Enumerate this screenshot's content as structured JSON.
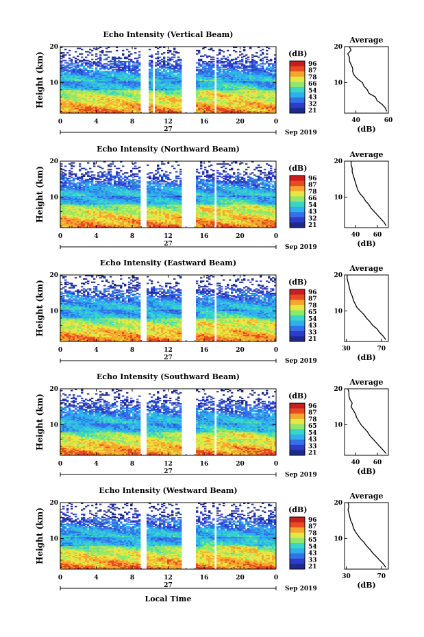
{
  "chart_data": [
    {
      "type": "heatmap",
      "title": "Echo Intensity (Vertical Beam)",
      "ylabel": "Height (km)",
      "x_ticks": [
        "0",
        "4",
        "8",
        "12",
        "16",
        "20",
        "0"
      ],
      "y_ticks": [
        "10",
        "20"
      ],
      "xlim": [
        0,
        24
      ],
      "ylim": [
        1.5,
        20
      ],
      "date_day": "27",
      "date_month_year": "Sep 2019",
      "colorbar": {
        "unit": "(dB)",
        "labels": [
          "96",
          "87",
          "78",
          "66",
          "54",
          "43",
          "32",
          "21"
        ],
        "range": [
          21,
          96
        ]
      },
      "data_gaps_hours": [
        [
          9.0,
          9.9
        ],
        [
          10.3,
          10.5
        ],
        [
          13.5,
          15.0
        ],
        [
          17.1,
          17.4
        ]
      ],
      "average_profile": {
        "title": "Average",
        "xlabel": "(dB)",
        "x_ticks": [
          "40",
          "60"
        ],
        "y_ticks": [
          "10",
          "20"
        ],
        "xlim": [
          33,
          60
        ],
        "height_km": [
          2,
          3,
          4,
          5,
          6,
          7,
          8,
          9,
          10,
          11,
          12,
          13,
          14,
          15,
          16,
          17,
          18,
          19,
          20
        ],
        "db": [
          59,
          58,
          56,
          53,
          52,
          48,
          47,
          45,
          44,
          41,
          39,
          38,
          38,
          37,
          36,
          36,
          35,
          37,
          36
        ]
      }
    },
    {
      "type": "heatmap",
      "title": "Echo Intensity (Northward Beam)",
      "ylabel": "Height (km)",
      "x_ticks": [
        "0",
        "4",
        "8",
        "12",
        "16",
        "20",
        "0"
      ],
      "y_ticks": [
        "10",
        "20"
      ],
      "xlim": [
        0,
        24
      ],
      "ylim": [
        1.5,
        20
      ],
      "date_day": "27",
      "date_month_year": "Sep 2019",
      "colorbar": {
        "unit": "(dB)",
        "labels": [
          "96",
          "87",
          "78",
          "66",
          "54",
          "43",
          "32",
          "21"
        ],
        "range": [
          21,
          96
        ]
      },
      "data_gaps_hours": [
        [
          9.0,
          9.6
        ],
        [
          10.2,
          10.4
        ],
        [
          13.5,
          15.0
        ],
        [
          17.1,
          17.4
        ]
      ],
      "average_profile": {
        "title": "Average",
        "xlabel": "(dB)",
        "x_ticks": [
          "40",
          "60"
        ],
        "y_ticks": [
          "10",
          "20"
        ],
        "xlim": [
          30,
          70
        ],
        "height_km": [
          2,
          3,
          4,
          5,
          6,
          7,
          8,
          9,
          10,
          11,
          12,
          13,
          14,
          15,
          16,
          17,
          18,
          19,
          20
        ],
        "db": [
          68,
          66,
          63,
          60,
          57,
          54,
          52,
          49,
          47,
          44,
          42,
          41,
          40,
          39,
          38,
          37,
          37,
          36,
          36
        ]
      }
    },
    {
      "type": "heatmap",
      "title": "Echo Intensity (Eastward Beam)",
      "ylabel": "Height (km)",
      "x_ticks": [
        "0",
        "4",
        "8",
        "12",
        "16",
        "20",
        "0"
      ],
      "y_ticks": [
        "10",
        "20"
      ],
      "xlim": [
        0,
        24
      ],
      "ylim": [
        1.5,
        20
      ],
      "date_day": "27",
      "date_month_year": "Sep 2019",
      "colorbar": {
        "unit": "(dB)",
        "labels": [
          "96",
          "87",
          "78",
          "65",
          "54",
          "43",
          "33",
          "21"
        ],
        "range": [
          21,
          96
        ]
      },
      "data_gaps_hours": [
        [
          9.0,
          9.6
        ],
        [
          10.2,
          10.4
        ],
        [
          13.5,
          15.0
        ],
        [
          17.1,
          17.4
        ]
      ],
      "average_profile": {
        "title": "Average",
        "xlabel": "(dB)",
        "x_ticks": [
          "30",
          "70"
        ],
        "y_ticks": [
          "10",
          "20"
        ],
        "xlim": [
          28,
          78
        ],
        "height_km": [
          2,
          3,
          4,
          5,
          6,
          7,
          8,
          9,
          10,
          11,
          12,
          13,
          14,
          15,
          16,
          17,
          18,
          19,
          20
        ],
        "db": [
          75,
          72,
          68,
          65,
          60,
          57,
          53,
          50,
          46,
          42,
          40,
          38,
          37,
          35,
          34,
          33,
          32,
          31,
          31
        ]
      }
    },
    {
      "type": "heatmap",
      "title": "Echo Intensity (Southward Beam)",
      "ylabel": "Height (km)",
      "x_ticks": [
        "0",
        "4",
        "8",
        "12",
        "16",
        "20",
        "0"
      ],
      "y_ticks": [
        "10",
        "20"
      ],
      "xlim": [
        0,
        24
      ],
      "ylim": [
        1.5,
        20
      ],
      "date_day": "27",
      "date_month_year": "Sep 2019",
      "colorbar": {
        "unit": "(dB)",
        "labels": [
          "96",
          "87",
          "78",
          "65",
          "54",
          "43",
          "33",
          "21"
        ],
        "range": [
          21,
          96
        ]
      },
      "data_gaps_hours": [
        [
          9.0,
          9.6
        ],
        [
          10.2,
          10.4
        ],
        [
          13.5,
          15.0
        ],
        [
          17.1,
          17.4
        ]
      ],
      "average_profile": {
        "title": "Average",
        "xlabel": "(dB)",
        "x_ticks": [
          "40",
          "60"
        ],
        "y_ticks": [
          "10",
          "20"
        ],
        "xlim": [
          30,
          70
        ],
        "height_km": [
          2,
          3,
          4,
          5,
          6,
          7,
          8,
          9,
          10,
          11,
          12,
          13,
          14,
          15,
          16,
          17,
          18,
          19,
          20
        ],
        "db": [
          68,
          65,
          62,
          59,
          56,
          53,
          51,
          48,
          45,
          43,
          41,
          40,
          38,
          36,
          37,
          35,
          34,
          34,
          33
        ]
      }
    },
    {
      "type": "heatmap",
      "title": "Echo Intensity (Westward Beam)",
      "ylabel": "Height (km)",
      "x_ticks": [
        "0",
        "4",
        "8",
        "12",
        "16",
        "20",
        "0"
      ],
      "y_ticks": [
        "10",
        "20"
      ],
      "xlim": [
        0,
        24
      ],
      "ylim": [
        1.5,
        20
      ],
      "date_day": "27",
      "date_month_year": "Sep 2019",
      "xlabel": "Local Time",
      "colorbar": {
        "unit": "(dB)",
        "labels": [
          "96",
          "87",
          "78",
          "65",
          "54",
          "43",
          "33",
          "21"
        ],
        "range": [
          21,
          96
        ]
      },
      "data_gaps_hours": [
        [
          9.0,
          9.6
        ],
        [
          10.2,
          10.4
        ],
        [
          13.5,
          15.0
        ],
        [
          17.1,
          17.4
        ]
      ],
      "average_profile": {
        "title": "Average",
        "xlabel": "(dB)",
        "x_ticks": [
          "30",
          "70"
        ],
        "y_ticks": [
          "10",
          "20"
        ],
        "xlim": [
          28,
          78
        ],
        "height_km": [
          2,
          3,
          4,
          5,
          6,
          7,
          8,
          9,
          10,
          11,
          12,
          13,
          14,
          15,
          16,
          17,
          18,
          19,
          20
        ],
        "db": [
          75,
          72,
          68,
          64,
          60,
          57,
          53,
          50,
          46,
          43,
          40,
          38,
          37,
          35,
          34,
          33,
          32,
          33,
          32
        ]
      }
    }
  ],
  "colors": {
    "colormap": [
      "#1c2a8c",
      "#2b3cc8",
      "#3470e6",
      "#2fb0ee",
      "#38d6c6",
      "#8fe86a",
      "#e8e644",
      "#f5a62c",
      "#e84a22",
      "#c81e1e"
    ],
    "axis": "#000000"
  }
}
